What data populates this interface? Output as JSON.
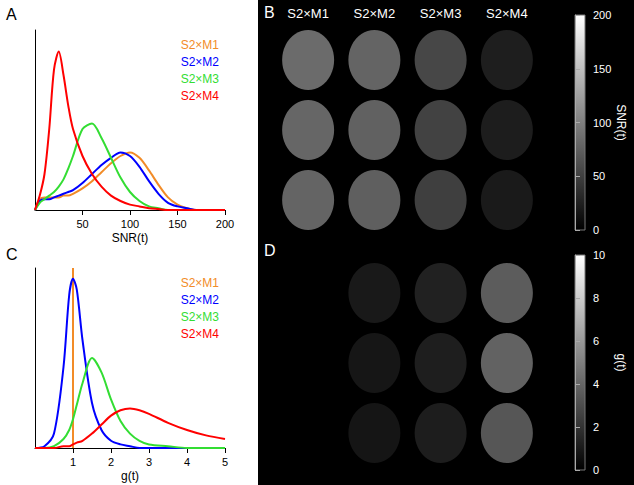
{
  "chart_data": [
    {
      "type": "line",
      "label": "A",
      "x_label": "SNR(t)",
      "x": [
        0,
        5,
        10,
        15,
        20,
        25,
        30,
        35,
        40,
        50,
        60,
        70,
        80,
        90,
        100,
        110,
        120,
        130,
        140,
        150,
        160,
        170,
        180,
        190,
        200
      ],
      "xlim": [
        0,
        200
      ],
      "xticks": [
        50,
        100,
        150,
        200
      ],
      "ylim": [
        0,
        1
      ],
      "tick_labels": "x",
      "legend": "upper right",
      "grid": false,
      "series": [
        {
          "name": "S2×M1",
          "color": "#f28c28",
          "values": [
            0,
            0.06,
            0.07,
            0.07,
            0.07,
            0.07,
            0.08,
            0.08,
            0.09,
            0.12,
            0.16,
            0.21,
            0.26,
            0.3,
            0.32,
            0.29,
            0.22,
            0.14,
            0.07,
            0.03,
            0.01,
            0,
            0,
            0,
            0
          ]
        },
        {
          "name": "S2×M2",
          "color": "#0000ff",
          "values": [
            0,
            0.05,
            0.06,
            0.06,
            0.07,
            0.08,
            0.09,
            0.1,
            0.11,
            0.15,
            0.2,
            0.25,
            0.29,
            0.32,
            0.3,
            0.24,
            0.16,
            0.09,
            0.04,
            0.02,
            0.01,
            0,
            0,
            0,
            0
          ]
        },
        {
          "name": "S2×M3",
          "color": "#33dd33",
          "values": [
            0,
            0.04,
            0.06,
            0.08,
            0.1,
            0.13,
            0.17,
            0.23,
            0.3,
            0.45,
            0.48,
            0.4,
            0.29,
            0.18,
            0.1,
            0.05,
            0.02,
            0.01,
            0,
            0,
            0,
            0,
            0,
            0,
            0
          ]
        },
        {
          "name": "S2×M4",
          "color": "#ff0000",
          "values": [
            0,
            0.08,
            0.2,
            0.45,
            0.78,
            0.88,
            0.75,
            0.58,
            0.45,
            0.3,
            0.2,
            0.13,
            0.08,
            0.05,
            0.03,
            0.02,
            0.01,
            0.005,
            0,
            0,
            0,
            0,
            0,
            0,
            0
          ]
        }
      ]
    },
    {
      "type": "image_grid",
      "label": "B",
      "columns": [
        "S2×M1",
        "S2×M2",
        "S2×M3",
        "S2×M4"
      ],
      "values": [
        [
          105,
          98,
          70,
          30
        ],
        [
          100,
          95,
          65,
          28
        ],
        [
          98,
          93,
          62,
          25
        ]
      ],
      "colorbar": {
        "title": "SNR(t)",
        "lim": [
          0,
          200
        ],
        "ticks": [
          0,
          50,
          100,
          150,
          200
        ]
      }
    },
    {
      "type": "line",
      "label": "C",
      "x_label": "g(t)",
      "xlim": [
        0,
        5
      ],
      "xticks": [
        1,
        2,
        3,
        4,
        5
      ],
      "ylim": [
        0,
        1
      ],
      "tick_labels": "x",
      "legend": "upper right",
      "grid": false,
      "series": [
        {
          "name": "S2×M1",
          "color": "#f28c28",
          "x": [
            1,
            1
          ],
          "values": [
            0,
            1
          ]
        },
        {
          "name": "S2×M2",
          "color": "#0000ff",
          "x": [
            0,
            0.25,
            0.5,
            0.75,
            0.9,
            1,
            1.1,
            1.25,
            1.5,
            1.75,
            2,
            2.25,
            2.5,
            2.75,
            3,
            3.5,
            4,
            4.5,
            5
          ],
          "values": [
            0,
            0.01,
            0.08,
            0.45,
            0.85,
            0.94,
            0.88,
            0.6,
            0.25,
            0.1,
            0.04,
            0.02,
            0.01,
            0,
            0,
            0,
            0,
            0,
            0
          ]
        },
        {
          "name": "S2×M3",
          "color": "#33dd33",
          "x": [
            0,
            0.25,
            0.5,
            0.75,
            0.9,
            1,
            1.1,
            1.25,
            1.5,
            1.75,
            2,
            2.25,
            2.5,
            2.75,
            3,
            3.5,
            4,
            4.5,
            5
          ],
          "values": [
            0,
            0,
            0.01,
            0.05,
            0.1,
            0.16,
            0.24,
            0.36,
            0.5,
            0.42,
            0.27,
            0.15,
            0.08,
            0.04,
            0.02,
            0.01,
            0,
            0,
            0
          ]
        },
        {
          "name": "S2×M4",
          "color": "#ff0000",
          "x": [
            0,
            0.25,
            0.5,
            0.75,
            0.9,
            1,
            1.1,
            1.25,
            1.5,
            1.75,
            2,
            2.25,
            2.5,
            2.75,
            3,
            3.5,
            4,
            4.5,
            5
          ],
          "values": [
            0,
            0,
            0,
            0.01,
            0.01,
            0.02,
            0.03,
            0.04,
            0.08,
            0.13,
            0.18,
            0.21,
            0.22,
            0.21,
            0.19,
            0.14,
            0.1,
            0.07,
            0.05
          ]
        }
      ]
    },
    {
      "type": "image_grid",
      "label": "D",
      "values": [
        [
          null,
          1.2,
          1.6,
          4.5
        ],
        [
          null,
          1.1,
          1.5,
          4.8
        ],
        [
          null,
          1.0,
          1.4,
          4.2
        ]
      ],
      "colorbar": {
        "title": "g(t)",
        "lim": [
          0,
          10
        ],
        "ticks": [
          0,
          2,
          4,
          6,
          8,
          10
        ]
      }
    }
  ]
}
